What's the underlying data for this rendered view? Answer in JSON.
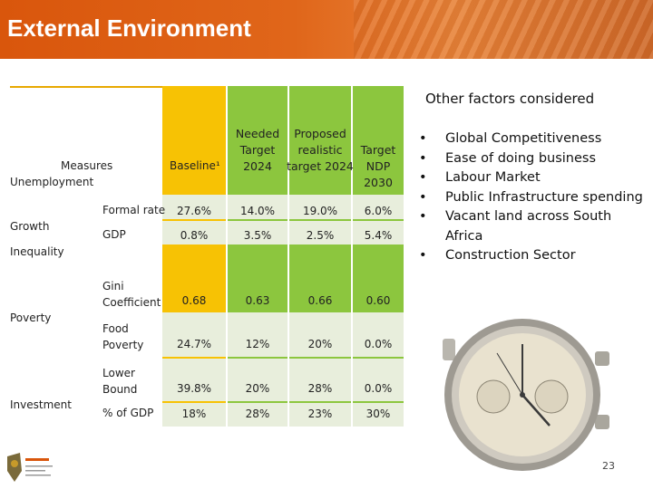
{
  "header": {
    "title": "External Environment"
  },
  "table": {
    "headers": {
      "measures": "Measures",
      "baseline": "Baseline¹",
      "needed_line1": "Needed",
      "needed_line2": "Target",
      "needed_line3": "2024",
      "proposed_line1": "Proposed",
      "proposed_line2": "realistic",
      "proposed_line3": "target 2024",
      "target_line1": "Target",
      "target_line2": "NDP 2030"
    },
    "categories": {
      "unemployment": "Unemployment",
      "growth": "Growth",
      "inequality": "Inequality",
      "poverty": "Poverty",
      "investment": "Investment"
    },
    "rows": [
      {
        "label": "Formal rate",
        "baseline": "27.6%",
        "needed": "14.0%",
        "proposed": "19.0%",
        "target": "6.0%"
      },
      {
        "label": "GDP",
        "baseline": "0.8%",
        "needed": "3.5%",
        "proposed": "2.5%",
        "target": "5.4%"
      },
      {
        "label_line1": "Gini",
        "label_line2": "Coefficient",
        "baseline": "0.68",
        "needed": "0.63",
        "proposed": "0.66",
        "target": "0.60"
      },
      {
        "label_line1": "Food",
        "label_line2": "Poverty",
        "baseline": "24.7%",
        "needed": "12%",
        "proposed": "20%",
        "target": "0.0%"
      },
      {
        "label_line1": "Lower",
        "label_line2": "Bound",
        "baseline": "39.8%",
        "needed": "20%",
        "proposed": "28%",
        "target": "0.0%"
      },
      {
        "label": "% of GDP",
        "baseline": "18%",
        "needed": "28%",
        "proposed": "23%",
        "target": "30%"
      }
    ]
  },
  "side": {
    "title": "Other factors considered",
    "bullets": [
      "Global Competitiveness",
      "Ease of doing business",
      "Labour Market",
      "Public Infrastructure spending",
      "Vacant land across South Africa",
      "Construction Sector"
    ]
  },
  "footer": {
    "page_number": "23"
  },
  "colors": {
    "header": "#e0661a",
    "green_header": "#8cc63e",
    "yellow": "#f7c204",
    "light_green": "#e8eedc"
  }
}
